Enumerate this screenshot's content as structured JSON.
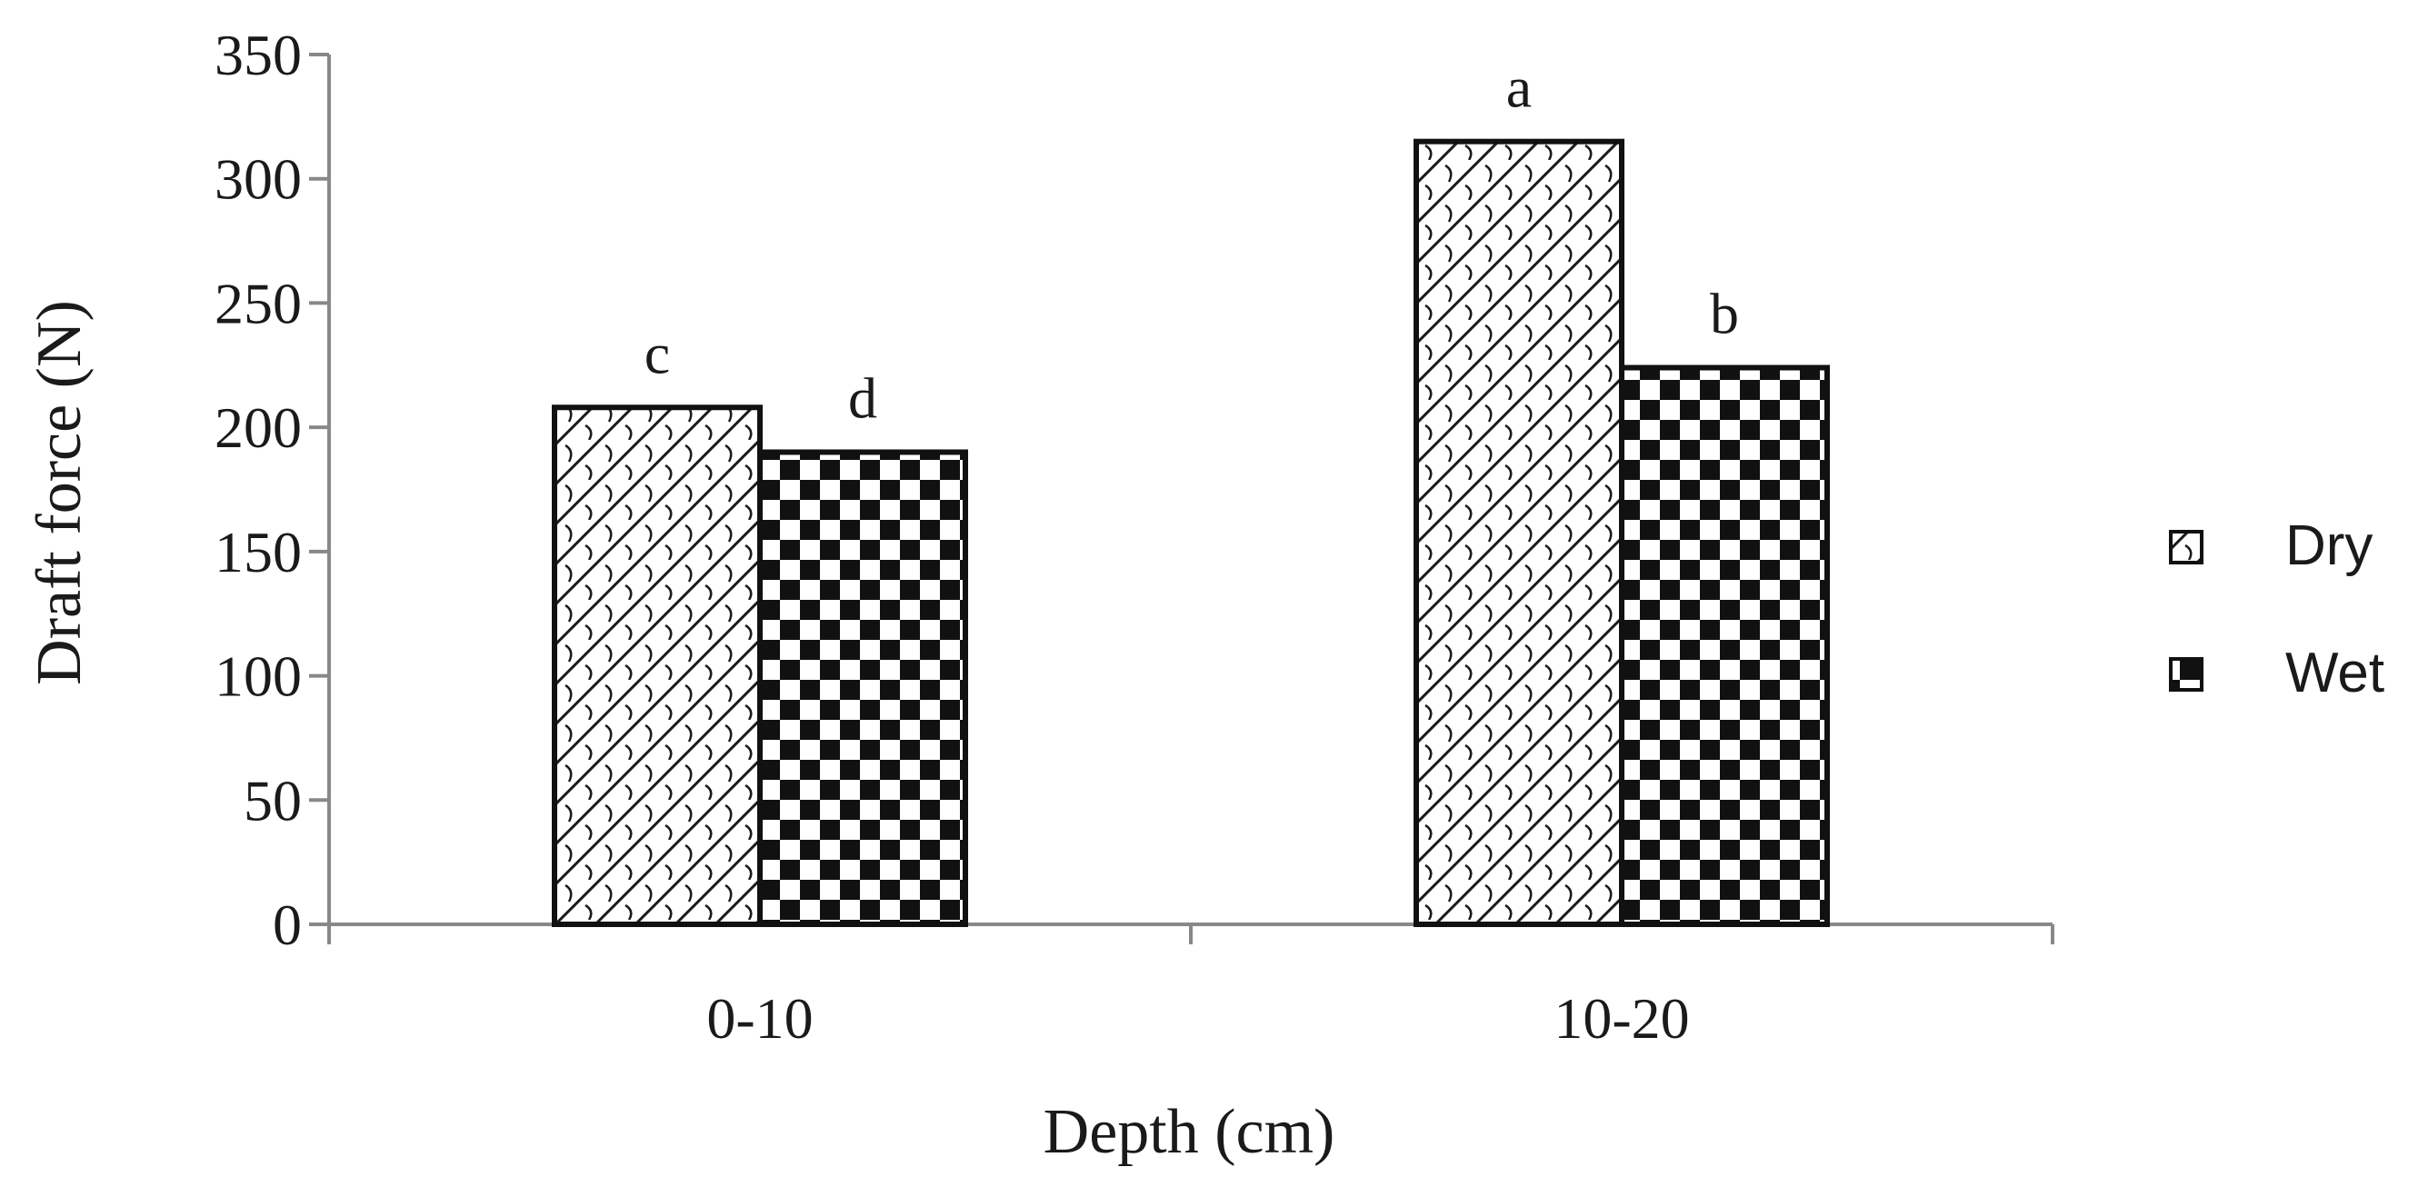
{
  "chart_data": {
    "type": "bar",
    "title": "",
    "xlabel": "Depth (cm)",
    "ylabel": "Draft force (N)",
    "ylim": [
      0,
      350
    ],
    "yticks": [
      0,
      50,
      100,
      150,
      200,
      250,
      300,
      350
    ],
    "categories": [
      "0-10",
      "10-20"
    ],
    "series": [
      {
        "name": "Dry",
        "values": [
          208,
          315
        ],
        "labels": [
          "c",
          "a"
        ],
        "pattern": "diagonal-hatch"
      },
      {
        "name": "Wet",
        "values": [
          190,
          224
        ],
        "labels": [
          "d",
          "b"
        ],
        "pattern": "checkerboard"
      }
    ],
    "legend": {
      "position": "right",
      "entries": [
        "Dry",
        "Wet"
      ]
    },
    "grid": false,
    "colors": {
      "ink": "#1a1a1a",
      "background": "#ffffff",
      "axis": "#888888"
    }
  }
}
